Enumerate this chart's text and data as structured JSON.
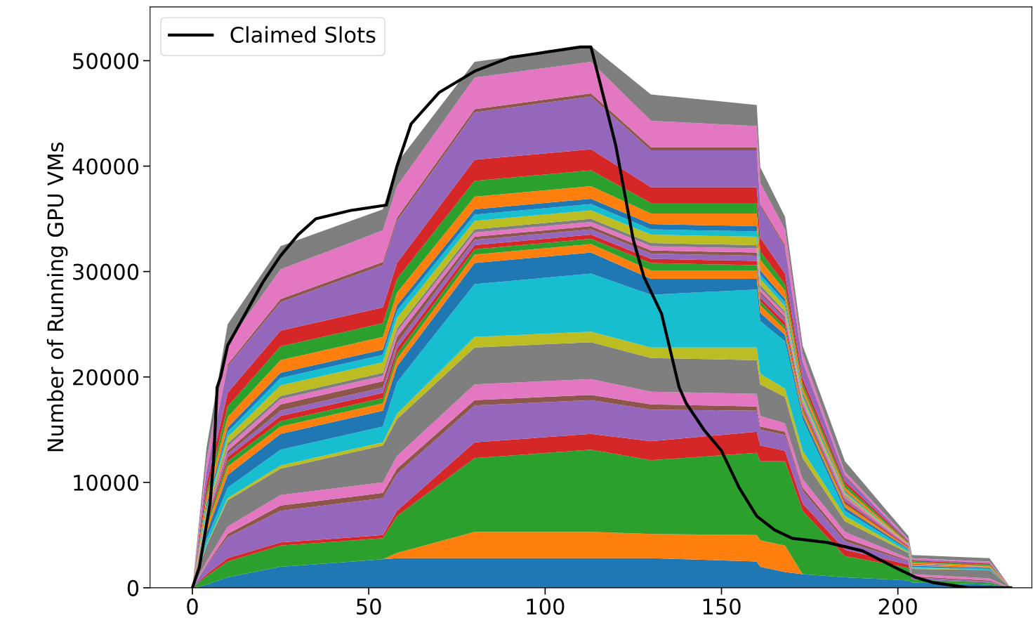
{
  "chart_data": {
    "type": "area",
    "stacked": true,
    "ylabel": "Number of Running GPU VMs",
    "legend": "top left",
    "grid": false,
    "xlim": [
      -12,
      238
    ],
    "xticks": [
      0,
      50,
      100,
      150,
      200
    ],
    "ylim": [
      0,
      55100
    ],
    "yticks": [
      0,
      10000,
      20000,
      30000,
      40000,
      50000
    ],
    "x": [
      0,
      4,
      10,
      25,
      54,
      58,
      80,
      113,
      130,
      160,
      161,
      168,
      173,
      185,
      203,
      204,
      226,
      232
    ],
    "series": [
      {
        "color": "#1f77b4",
        "values": [
          0,
          300,
          1000,
          2000,
          2700,
          2800,
          2800,
          2800,
          2800,
          2500,
          2000,
          1500,
          1300,
          1000,
          700,
          500,
          300,
          0
        ]
      },
      {
        "color": "#ff7f0e",
        "values": [
          0,
          0,
          0,
          0,
          0,
          500,
          2500,
          2500,
          2300,
          2500,
          2500,
          2500,
          0,
          0,
          0,
          0,
          0,
          0
        ]
      },
      {
        "color": "#2ca02c",
        "values": [
          0,
          800,
          1500,
          2000,
          2000,
          3500,
          7000,
          7800,
          7000,
          7800,
          7500,
          8000,
          6000,
          2000,
          1200,
          300,
          200,
          0
        ]
      },
      {
        "color": "#d62728",
        "values": [
          0,
          200,
          300,
          300,
          300,
          500,
          1500,
          1500,
          1800,
          2000,
          1500,
          1000,
          700,
          600,
          300,
          0,
          0,
          0
        ]
      },
      {
        "color": "#9467bd",
        "values": [
          0,
          800,
          2000,
          3000,
          3500,
          3500,
          3500,
          3200,
          3000,
          2000,
          1500,
          1500,
          1200,
          800,
          300,
          200,
          100,
          0
        ]
      },
      {
        "color": "#8c564b",
        "values": [
          0,
          100,
          300,
          500,
          500,
          500,
          500,
          500,
          500,
          400,
          300,
          300,
          300,
          300,
          100,
          100,
          100,
          0
        ]
      },
      {
        "color": "#e377c2",
        "values": [
          0,
          300,
          700,
          1000,
          1000,
          1200,
          1500,
          1500,
          1200,
          1200,
          1000,
          800,
          800,
          600,
          200,
          200,
          200,
          0
        ]
      },
      {
        "color": "#7f7f7f",
        "values": [
          0,
          1500,
          2500,
          2500,
          3500,
          3500,
          3500,
          3500,
          3200,
          3200,
          3000,
          2500,
          2000,
          1000,
          500,
          500,
          800,
          0
        ]
      },
      {
        "color": "#bcbd22",
        "values": [
          0,
          100,
          200,
          300,
          300,
          500,
          1000,
          1000,
          1000,
          1200,
          1000,
          800,
          700,
          500,
          100,
          100,
          0,
          0
        ]
      },
      {
        "color": "#17becf",
        "values": [
          0,
          500,
          1000,
          1500,
          1500,
          3000,
          5000,
          5500,
          5000,
          5500,
          5000,
          4500,
          3000,
          500,
          200,
          100,
          100,
          0
        ]
      },
      {
        "color": "#1f77b4",
        "values": [
          0,
          600,
          1200,
          1500,
          1500,
          1500,
          2000,
          2000,
          1500,
          1000,
          800,
          600,
          400,
          300,
          100,
          100,
          100,
          0
        ]
      },
      {
        "color": "#ff7f0e",
        "values": [
          0,
          500,
          800,
          700,
          700,
          700,
          800,
          800,
          800,
          800,
          700,
          500,
          400,
          300,
          100,
          100,
          100,
          0
        ]
      },
      {
        "color": "#2ca02c",
        "values": [
          0,
          300,
          500,
          500,
          500,
          500,
          500,
          500,
          700,
          500,
          400,
          300,
          200,
          100,
          0,
          0,
          0,
          0
        ]
      },
      {
        "color": "#d62728",
        "values": [
          0,
          200,
          400,
          500,
          500,
          500,
          400,
          400,
          400,
          400,
          300,
          400,
          200,
          200,
          100,
          0,
          0,
          0
        ]
      },
      {
        "color": "#9467bd",
        "values": [
          0,
          200,
          300,
          500,
          500,
          500,
          500,
          500,
          500,
          500,
          400,
          300,
          200,
          200,
          100,
          100,
          0,
          0
        ]
      },
      {
        "color": "#8c564b",
        "values": [
          0,
          100,
          300,
          600,
          600,
          600,
          300,
          300,
          300,
          300,
          200,
          200,
          100,
          100,
          0,
          0,
          0,
          0
        ]
      },
      {
        "color": "#e377c2",
        "values": [
          0,
          300,
          400,
          500,
          500,
          500,
          400,
          400,
          400,
          400,
          300,
          300,
          200,
          200,
          100,
          0,
          0,
          0
        ]
      },
      {
        "color": "#7f7f7f",
        "values": [
          0,
          200,
          300,
          300,
          300,
          300,
          300,
          300,
          300,
          300,
          300,
          200,
          100,
          100,
          0,
          0,
          0,
          0
        ]
      },
      {
        "color": "#bcbd22",
        "values": [
          0,
          300,
          600,
          1000,
          1000,
          1000,
          800,
          800,
          800,
          800,
          600,
          500,
          300,
          200,
          0,
          0,
          0,
          0
        ]
      },
      {
        "color": "#17becf",
        "values": [
          0,
          300,
          500,
          700,
          700,
          700,
          600,
          600,
          500,
          500,
          400,
          400,
          200,
          100,
          0,
          0,
          0,
          0
        ]
      },
      {
        "color": "#1f77b4",
        "values": [
          0,
          300,
          400,
          500,
          500,
          500,
          500,
          500,
          500,
          500,
          400,
          300,
          200,
          100,
          0,
          0,
          0,
          0
        ]
      },
      {
        "color": "#ff7f0e",
        "values": [
          0,
          600,
          1000,
          1200,
          1200,
          1200,
          1200,
          1200,
          1000,
          1200,
          1000,
          800,
          500,
          300,
          100,
          100,
          100,
          0
        ]
      },
      {
        "color": "#2ca02c",
        "values": [
          0,
          500,
          1000,
          1300,
          1300,
          1300,
          1500,
          1500,
          1000,
          1000,
          800,
          600,
          400,
          300,
          100,
          100,
          100,
          0
        ]
      },
      {
        "color": "#d62728",
        "values": [
          0,
          800,
          1300,
          1500,
          1500,
          1500,
          2000,
          2000,
          1500,
          1500,
          1300,
          1000,
          500,
          300,
          100,
          100,
          100,
          0
        ]
      },
      {
        "color": "#9467bd",
        "values": [
          0,
          1200,
          2500,
          2700,
          4000,
          4000,
          4500,
          5000,
          3500,
          3500,
          3000,
          2500,
          1500,
          500,
          100,
          100,
          100,
          0
        ]
      },
      {
        "color": "#8c564b",
        "values": [
          0,
          100,
          200,
          300,
          300,
          300,
          300,
          300,
          300,
          300,
          200,
          200,
          100,
          100,
          0,
          0,
          0,
          0
        ]
      },
      {
        "color": "#e377c2",
        "values": [
          0,
          1000,
          2000,
          2800,
          3000,
          3000,
          3000,
          3000,
          2500,
          2000,
          2000,
          1500,
          700,
          300,
          100,
          100,
          100,
          0
        ]
      },
      {
        "color": "#7f7f7f",
        "values": [
          0,
          1200,
          1800,
          2200,
          2000,
          2200,
          1500,
          1500,
          2500,
          2000,
          1500,
          1200,
          800,
          1000,
          300,
          300,
          300,
          0
        ]
      },
      {
        "type": "line",
        "name": "Claimed Slots",
        "color": "#000000",
        "x": [
          0,
          2,
          5,
          6,
          7,
          8,
          10,
          15,
          20,
          25,
          30,
          35,
          45,
          55,
          58,
          62,
          70,
          80,
          90,
          100,
          110,
          113,
          117,
          120,
          125,
          128,
          133,
          138,
          140,
          145,
          150,
          155,
          160,
          165,
          170,
          180,
          190,
          200,
          205,
          210,
          220,
          232
        ],
        "values": [
          0,
          2000,
          8000,
          12000,
          19000,
          20000,
          23000,
          26000,
          29000,
          31500,
          33500,
          35000,
          35800,
          36300,
          40000,
          44000,
          47000,
          49000,
          50300,
          50800,
          51300,
          51300,
          46000,
          42000,
          33000,
          29500,
          26000,
          19000,
          17500,
          15000,
          13000,
          9500,
          6800,
          5500,
          4700,
          4300,
          3500,
          1800,
          1000,
          500,
          0,
          0
        ]
      }
    ]
  }
}
